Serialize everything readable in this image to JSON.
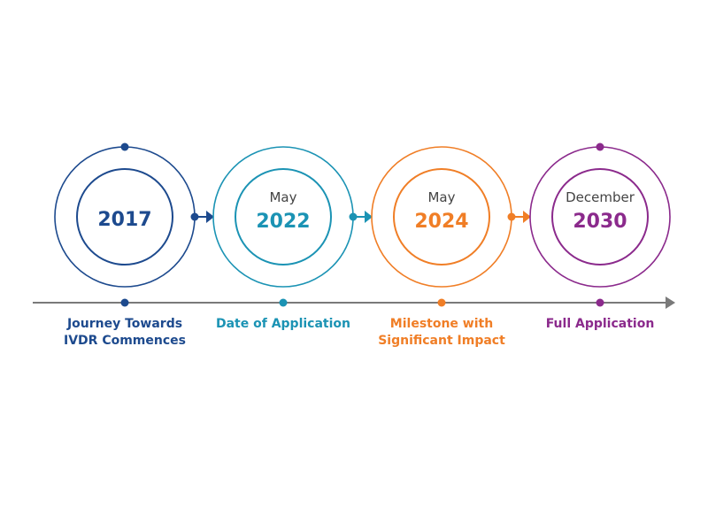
{
  "milestones": [
    {
      "month": "",
      "year": "2017",
      "label_lines": [
        "Journey Towards",
        "IVDR Commences"
      ],
      "color": "#1d4a8e",
      "top_dot": true,
      "connector": true
    },
    {
      "month": "May",
      "year": "2022",
      "label_lines": [
        "Date of Application",
        ""
      ],
      "color": "#1b93b4",
      "top_dot": false,
      "connector": true
    },
    {
      "month": "May",
      "year": "2024",
      "label_lines": [
        "Milestone with",
        "Significant Impact"
      ],
      "color": "#f07e26",
      "top_dot": false,
      "connector": true
    },
    {
      "month": "December",
      "year": "2030",
      "label_lines": [
        "Full Application",
        ""
      ],
      "color": "#8b2a8c",
      "top_dot": true,
      "connector": false
    }
  ],
  "axis_color": "#7a7a7a"
}
